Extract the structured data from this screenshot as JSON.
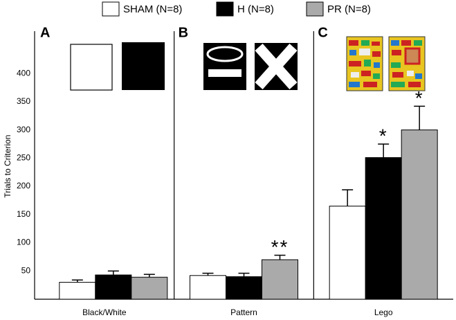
{
  "chart_data": {
    "type": "bar",
    "y_label": "Trials to Criterion",
    "categories": [
      "Black/White",
      "Pattern",
      "Lego"
    ],
    "panel_labels": [
      "A",
      "B",
      "C"
    ],
    "series": [
      {
        "name": "SHAM (N=8)",
        "color": "#ffffff",
        "values": [
          30,
          42,
          165
        ],
        "errors": [
          4,
          4,
          29
        ]
      },
      {
        "name": "H (N=8)",
        "color": "#000000",
        "values": [
          43,
          40,
          251
        ],
        "errors": [
          7,
          6,
          24
        ]
      },
      {
        "name": "PR (N=8)",
        "color": "#aaaaaa",
        "values": [
          39,
          70,
          300
        ],
        "errors": [
          5,
          8,
          42
        ]
      }
    ],
    "annotations": [
      {
        "text": "**",
        "category": "Pattern",
        "series": "PR (N=8)"
      },
      {
        "text": "*",
        "category": "Lego",
        "series": "H (N=8)"
      },
      {
        "text": "*",
        "category": "Lego",
        "series": "PR (N=8)"
      }
    ],
    "ylim": [
      0,
      475
    ],
    "yticks": [
      50,
      100,
      150,
      200,
      250,
      300,
      350,
      400
    ],
    "grid": false
  }
}
